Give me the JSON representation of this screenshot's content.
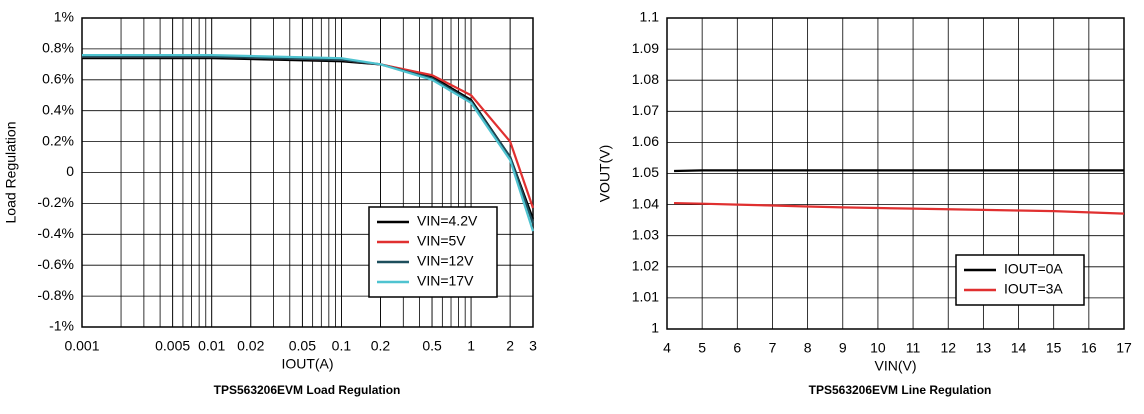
{
  "chart_data": [
    {
      "type": "line",
      "title": "TPS563206EVM Load Regulation",
      "x_label": "IOUT(A)",
      "y_label": "Load Regulation",
      "xscale": "log",
      "minor_grid": true,
      "grid": true,
      "legend": "lower right",
      "xlim": [
        0.001,
        3
      ],
      "xticks": [
        0.001,
        0.005,
        0.01,
        0.02,
        0.05,
        0.1,
        0.2,
        0.5,
        1,
        2,
        3
      ],
      "ylim": [
        -1,
        1
      ],
      "yticks": [
        {
          "value": -1,
          "label": "-1%"
        },
        {
          "value": -0.8,
          "label": "-0.8%"
        },
        {
          "value": -0.6,
          "label": "-0.6%"
        },
        {
          "value": -0.4,
          "label": "-0.4%"
        },
        {
          "value": -0.2,
          "label": "-0.2%"
        },
        0,
        {
          "value": 0.2,
          "label": "0.2%"
        },
        {
          "value": 0.4,
          "label": "0.4%"
        },
        {
          "value": 0.6,
          "label": "0.6%"
        },
        {
          "value": 0.8,
          "label": "0.8%"
        },
        {
          "value": 1,
          "label": "1%"
        }
      ],
      "x": [
        0.001,
        0.01,
        0.1,
        0.2,
        0.5,
        1,
        2,
        3
      ],
      "series": [
        {
          "name": "VIN=4.2V",
          "color": "#000000",
          "values": [
            0.74,
            0.74,
            0.72,
            0.7,
            0.62,
            0.47,
            0.1,
            -0.3
          ]
        },
        {
          "name": "VIN=5V",
          "color": "#e03030",
          "values": [
            0.75,
            0.75,
            0.73,
            0.7,
            0.63,
            0.5,
            0.2,
            -0.23
          ]
        },
        {
          "name": "VIN=12V",
          "color": "#1d4e5c",
          "values": [
            0.75,
            0.75,
            0.73,
            0.7,
            0.61,
            0.46,
            0.1,
            -0.33
          ]
        },
        {
          "name": "VIN=17V",
          "color": "#4fc3d0",
          "values": [
            0.76,
            0.76,
            0.74,
            0.7,
            0.6,
            0.45,
            0.08,
            -0.38
          ]
        }
      ]
    },
    {
      "type": "line",
      "title": "TPS563206EVM Line Regulation",
      "x_label": "VIN(V)",
      "y_label": "VOUT(V)",
      "xscale": "linear",
      "grid": true,
      "legend": "lower right",
      "xlim": [
        4,
        17
      ],
      "xticks": [
        4,
        5,
        6,
        7,
        8,
        9,
        10,
        11,
        12,
        13,
        14,
        15,
        16,
        17
      ],
      "ylim": [
        1,
        1.1
      ],
      "yticks": [
        1,
        1.01,
        1.02,
        1.03,
        1.04,
        1.05,
        1.06,
        1.07,
        1.08,
        1.09,
        1.1
      ],
      "x": [
        4.2,
        5,
        6,
        7,
        8,
        9,
        10,
        11,
        12,
        13,
        14,
        15,
        16,
        17
      ],
      "series": [
        {
          "name": "IOUT=0A",
          "color": "#000000",
          "values": [
            1.0508,
            1.051,
            1.051,
            1.051,
            1.051,
            1.051,
            1.051,
            1.051,
            1.051,
            1.051,
            1.051,
            1.051,
            1.051,
            1.051
          ]
        },
        {
          "name": "IOUT=3A",
          "color": "#e03030",
          "values": [
            1.0405,
            1.0403,
            1.04,
            1.0397,
            1.0394,
            1.0391,
            1.0389,
            1.0387,
            1.0385,
            1.0383,
            1.0381,
            1.0379,
            1.0375,
            1.0371
          ]
        }
      ]
    }
  ]
}
